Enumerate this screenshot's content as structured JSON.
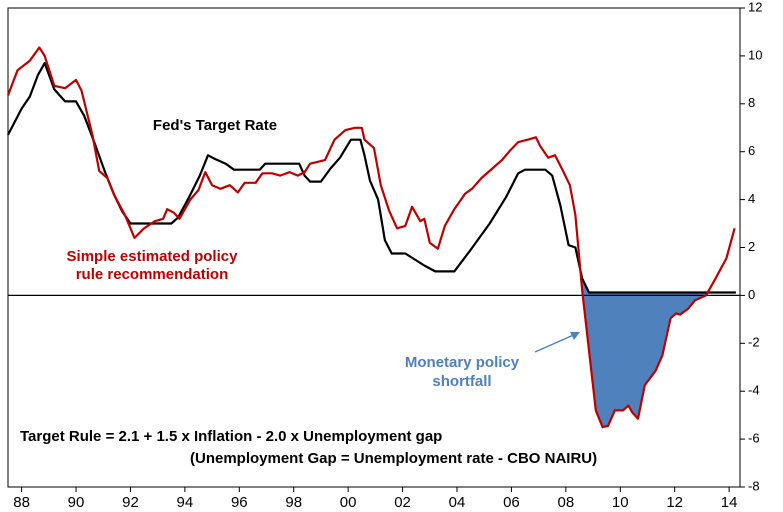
{
  "chart_data": {
    "type": "line",
    "annotations": {
      "fed_label": "Fed's Target Rate",
      "rule_label": [
        "Simple estimated policy",
        "rule recommendation"
      ],
      "shortfall_label": [
        "Monetary policy",
        "shortfall"
      ],
      "formula": "Target Rule = 2.1 + 1.5 x Inflation - 2.0 x Unemployment gap",
      "formula_note": "(Unemployment Gap = Unemployment rate - CBO NAIRU)"
    },
    "series": [
      {
        "name": "Fed's Target Rate",
        "color": "#000000",
        "x": [
          1987.5,
          1988,
          1988.3,
          1988.6,
          1988.85,
          1989.2,
          1989.6,
          1990,
          1990.3,
          1990.7,
          1991.05,
          1991.4,
          1991.7,
          1992,
          1992.5,
          1993.5,
          1993.75,
          1994.2,
          1994.55,
          1994.85,
          1995.1,
          1995.5,
          1995.8,
          1996.75,
          1996.95,
          1998.2,
          1998.4,
          1998.6,
          1999,
          1999.35,
          1999.7,
          2000.1,
          2000.45,
          2000.6,
          2000.8,
          2001.1,
          2001.35,
          2001.6,
          2002.1,
          2002.45,
          2002.8,
          2003.2,
          2003.9,
          2004.5,
          2005.2,
          2005.8,
          2006.25,
          2006.5,
          2007.25,
          2007.5,
          2007.8,
          2008.1,
          2008.35,
          2008.6,
          2008.85,
          2014.25
        ],
        "values": [
          6.7,
          7.8,
          8.3,
          9.2,
          9.7,
          8.6,
          8.1,
          8.1,
          7.5,
          6.3,
          5.2,
          4.2,
          3.5,
          3.0,
          3.0,
          3.0,
          3.25,
          4.2,
          5.0,
          5.85,
          5.7,
          5.5,
          5.25,
          5.25,
          5.5,
          5.5,
          5.0,
          4.75,
          4.75,
          5.3,
          5.75,
          6.5,
          6.5,
          5.85,
          4.8,
          4.0,
          2.3,
          1.75,
          1.75,
          1.5,
          1.25,
          1.0,
          1.0,
          1.9,
          3.0,
          4.1,
          5.1,
          5.25,
          5.25,
          5.0,
          3.75,
          2.1,
          2.0,
          0.7,
          0.12,
          0.12
        ]
      },
      {
        "name": "Simple estimated policy rule recommendation",
        "color": "#c00000",
        "x": [
          1987.5,
          1987.85,
          1988.3,
          1988.65,
          1988.85,
          1989.2,
          1989.6,
          1990,
          1990.2,
          1990.6,
          1990.85,
          1991.15,
          1991.4,
          1991.8,
          1992.15,
          1992.5,
          1992.9,
          1993.2,
          1993.35,
          1993.6,
          1993.8,
          1994.2,
          1994.5,
          1994.75,
          1995,
          1995.3,
          1995.65,
          1995.95,
          1996.2,
          1996.6,
          1996.85,
          1997.2,
          1997.5,
          1997.85,
          1998.15,
          1998.4,
          1998.6,
          1999.15,
          1999.5,
          1999.9,
          2000.25,
          2000.5,
          2000.6,
          2000.95,
          2001.2,
          2001.5,
          2001.8,
          2002.1,
          2002.35,
          2002.65,
          2002.8,
          2003.0,
          2003.3,
          2003.55,
          2003.9,
          2004.3,
          2004.55,
          2004.9,
          2005.3,
          2005.65,
          2005.95,
          2006.25,
          2006.6,
          2006.9,
          2007.05,
          2007.35,
          2007.6,
          2007.85,
          2008.15,
          2008.35,
          2008.6,
          2008.85,
          2009.1,
          2009.35,
          2009.55,
          2009.8,
          2010.1,
          2010.3,
          2010.45,
          2010.65,
          2010.9,
          2011.3,
          2011.55,
          2011.85,
          2012.05,
          2012.2,
          2012.5,
          2012.75,
          2013.15,
          2013.5,
          2013.9,
          2014.2
        ],
        "values": [
          8.35,
          9.4,
          9.8,
          10.35,
          10.0,
          8.75,
          8.65,
          9.0,
          8.55,
          6.7,
          5.2,
          4.9,
          4.2,
          3.35,
          2.4,
          2.8,
          3.1,
          3.2,
          3.6,
          3.45,
          3.2,
          4.0,
          4.4,
          5.15,
          4.6,
          4.45,
          4.6,
          4.3,
          4.7,
          4.7,
          5.1,
          5.1,
          5.0,
          5.15,
          5.0,
          5.15,
          5.5,
          5.65,
          6.5,
          6.9,
          7.0,
          7.0,
          6.5,
          6.15,
          4.6,
          3.55,
          2.8,
          2.9,
          3.7,
          3.1,
          3.2,
          2.2,
          1.95,
          2.9,
          3.6,
          4.25,
          4.45,
          4.9,
          5.3,
          5.65,
          6.05,
          6.4,
          6.5,
          6.6,
          6.25,
          5.75,
          5.85,
          5.3,
          4.6,
          3.35,
          0.2,
          -2.3,
          -4.8,
          -5.5,
          -5.45,
          -4.8,
          -4.8,
          -4.6,
          -4.9,
          -5.15,
          -3.75,
          -3.15,
          -2.5,
          -0.95,
          -0.75,
          -0.8,
          -0.55,
          -0.2,
          0.0,
          0.7,
          1.55,
          2.8
        ]
      }
    ],
    "shortfall_color": "#4f81bd",
    "xlim": [
      1987.5,
      2014.4
    ],
    "xticks": [
      {
        "value": 1988,
        "label": "88"
      },
      {
        "value": 1990,
        "label": "90"
      },
      {
        "value": 1992,
        "label": "92"
      },
      {
        "value": 1994,
        "label": "94"
      },
      {
        "value": 1996,
        "label": "96"
      },
      {
        "value": 1998,
        "label": "98"
      },
      {
        "value": 2000,
        "label": "00"
      },
      {
        "value": 2002,
        "label": "02"
      },
      {
        "value": 2004,
        "label": "04"
      },
      {
        "value": 2006,
        "label": "06"
      },
      {
        "value": 2008,
        "label": "08"
      },
      {
        "value": 2010,
        "label": "10"
      },
      {
        "value": 2012,
        "label": "12"
      },
      {
        "value": 2014,
        "label": "14"
      }
    ],
    "ylim": [
      -8,
      12
    ],
    "yticks": [
      -8,
      -6,
      -4,
      -2,
      0,
      2,
      4,
      6,
      8,
      10,
      12
    ]
  }
}
